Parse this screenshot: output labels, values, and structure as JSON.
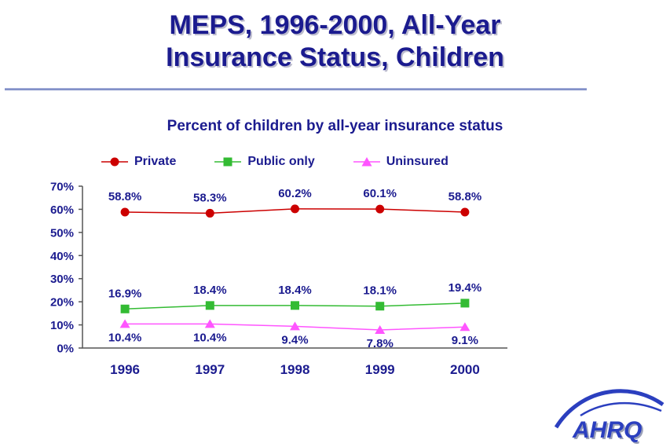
{
  "slide": {
    "title_line1": "MEPS, 1996-2000, All-Year",
    "title_line2": "Insurance Status, Children",
    "title_color": "#1b1b8f"
  },
  "chart_data": {
    "type": "line",
    "title": "Percent of children by all-year insurance status",
    "categories": [
      "1996",
      "1997",
      "1998",
      "1999",
      "2000"
    ],
    "series": [
      {
        "name": "Private",
        "color": "#cc0000",
        "marker": "circle",
        "label_position": "above",
        "values": [
          58.8,
          58.3,
          60.2,
          60.1,
          58.8
        ]
      },
      {
        "name": "Public only",
        "color": "#33bb33",
        "marker": "square",
        "label_position": "above",
        "values": [
          16.9,
          18.4,
          18.4,
          18.1,
          19.4
        ]
      },
      {
        "name": "Uninsured",
        "color": "#ff55ff",
        "marker": "triangle",
        "label_position": "below",
        "values": [
          10.4,
          10.4,
          9.4,
          7.8,
          9.1
        ]
      }
    ],
    "ylim": [
      0,
      70
    ],
    "ytick_step": 10,
    "ytick_labels": [
      "0%",
      "10%",
      "20%",
      "30%",
      "40%",
      "50%",
      "60%",
      "70%"
    ],
    "value_suffix": "%",
    "label_color": "#1b1b8f",
    "axis_color": "#555555",
    "legend_position": "top",
    "grid": false,
    "xlabel": "",
    "ylabel": ""
  },
  "logo": {
    "text": "AHRQ",
    "color": "#2b3fbf"
  }
}
